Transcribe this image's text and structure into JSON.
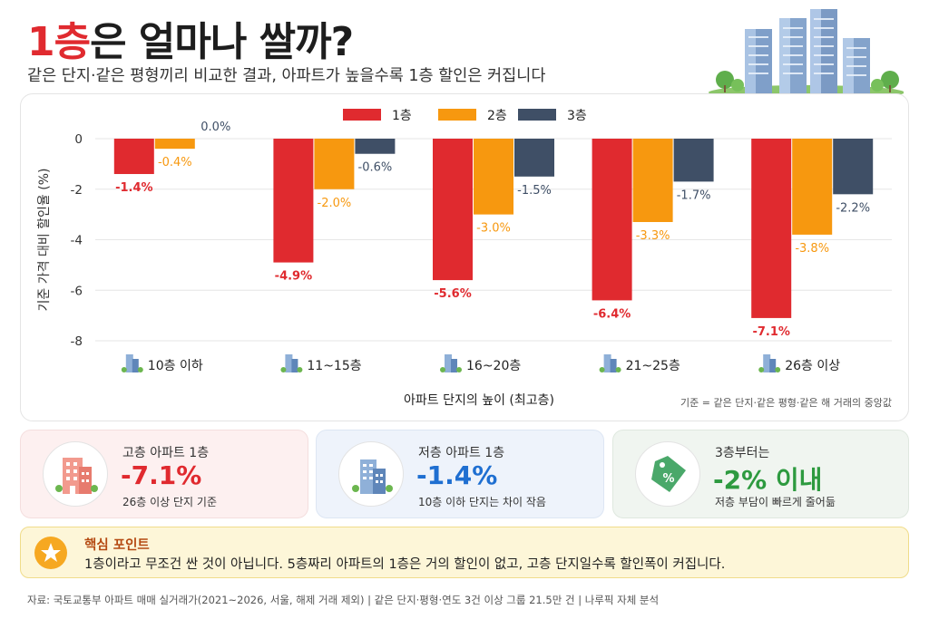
{
  "header": {
    "title_highlight": "1층",
    "title_rest": "은 얼마나 쌀까?",
    "subtitle": "같은 단지·같은 평형끼리 비교한 결과, 아파트가 높을수록 1층 할인은 커집니다"
  },
  "chart_data": {
    "type": "bar",
    "xlabel": "아파트 단지의 높이 (최고층)",
    "ylabel": "기준 가격 대비 할인율 (%)",
    "ylim": [
      -8,
      0
    ],
    "yticks": [
      0,
      -2,
      -4,
      -6,
      -8
    ],
    "grid": true,
    "legend_position": "top-center",
    "categories": [
      "10층 이하",
      "11~15층",
      "16~20층",
      "21~25층",
      "26층 이상"
    ],
    "series": [
      {
        "name": "1층",
        "color": "#e02a2f",
        "values": [
          -1.4,
          -4.9,
          -5.6,
          -6.4,
          -7.1
        ],
        "labels": [
          "-1.4%",
          "-4.9%",
          "-5.6%",
          "-6.4%",
          "-7.1%"
        ]
      },
      {
        "name": "2층",
        "color": "#f7980f",
        "values": [
          -0.4,
          -2.0,
          -3.0,
          -3.3,
          -3.8
        ],
        "labels": [
          "-0.4%",
          "-2.0%",
          "-3.0%",
          "-3.3%",
          "-3.8%"
        ]
      },
      {
        "name": "3층",
        "color": "#3f4f66",
        "values": [
          0.0,
          -0.6,
          -1.5,
          -1.7,
          -2.2
        ],
        "labels": [
          "0.0%",
          "-0.6%",
          "-1.5%",
          "-1.7%",
          "-2.2%"
        ]
      }
    ],
    "note": "기준 = 같은 단지·같은 평형·같은 해 거래의 중앙값",
    "category_icon": "building-icon"
  },
  "cards": [
    {
      "icon": "building-icon",
      "title": "고층 아파트 1층",
      "value": "-7.1%",
      "sub": "26층 이상 단지 기준",
      "color": "#e02a2f"
    },
    {
      "icon": "building-icon",
      "title": "저층 아파트 1층",
      "value": "-1.4%",
      "sub": "10층 이하 단지는 차이 작음",
      "color": "#1f6fd1"
    },
    {
      "icon": "price-tag-icon",
      "title": "3층부터는",
      "value": "-2% 이내",
      "sub": "저층 부담이 빠르게 줄어듦",
      "color": "#2d9a3f"
    }
  ],
  "keypoint": {
    "icon": "star-icon",
    "title": "핵심 포인트",
    "body": "1층이라고 무조건 싼 것이 아닙니다. 5층짜리 아파트의 1층은 거의 할인이 없고, 고층 단지일수록 할인폭이 커집니다."
  },
  "source": "자료: 국토교통부 아파트 매매 실거래가(2021~2026, 서울, 해제 거래 제외) | 같은 단지·평형·연도 3건 이상 그룹 21.5만 건 | 나루픽 자체 분석"
}
